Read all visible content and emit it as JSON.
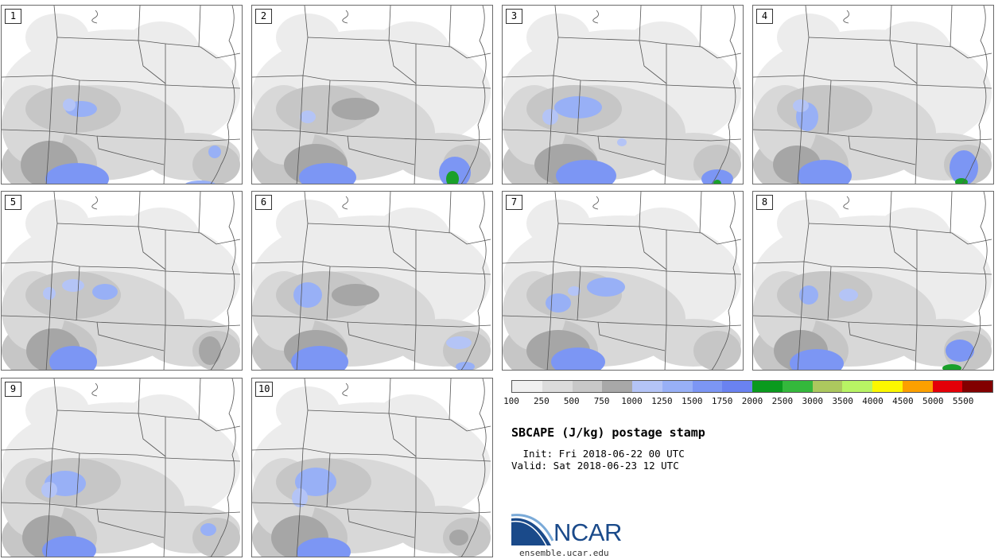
{
  "chart_data": {
    "type": "heatmap",
    "title": "SBCAPE (J/kg) postage stamp",
    "init": " Init: Fri 2018-06-22 00 UTC",
    "valid": "Valid: Sat 2018-06-23 12 UTC",
    "members": [
      "1",
      "2",
      "3",
      "4",
      "5",
      "6",
      "7",
      "8",
      "9",
      "10"
    ],
    "colorbar": {
      "tick_labels": [
        "100",
        "250",
        "500",
        "750",
        "1000",
        "1250",
        "1500",
        "1750",
        "2000",
        "2500",
        "3000",
        "3500",
        "4000",
        "4500",
        "5000",
        "5500"
      ],
      "colors": [
        "#f0f0f0",
        "#dcdcdc",
        "#c8c8c8",
        "#a8a8a8",
        "#b4c4f6",
        "#98b0f6",
        "#7c96f4",
        "#6a82f0",
        "#0a9a1e",
        "#34b83c",
        "#acc85e",
        "#b8f464",
        "#fcf800",
        "#fca000",
        "#e40008",
        "#820000"
      ]
    }
  },
  "logo": {
    "name": "NCAR",
    "url": "ensemble.ucar.edu"
  }
}
